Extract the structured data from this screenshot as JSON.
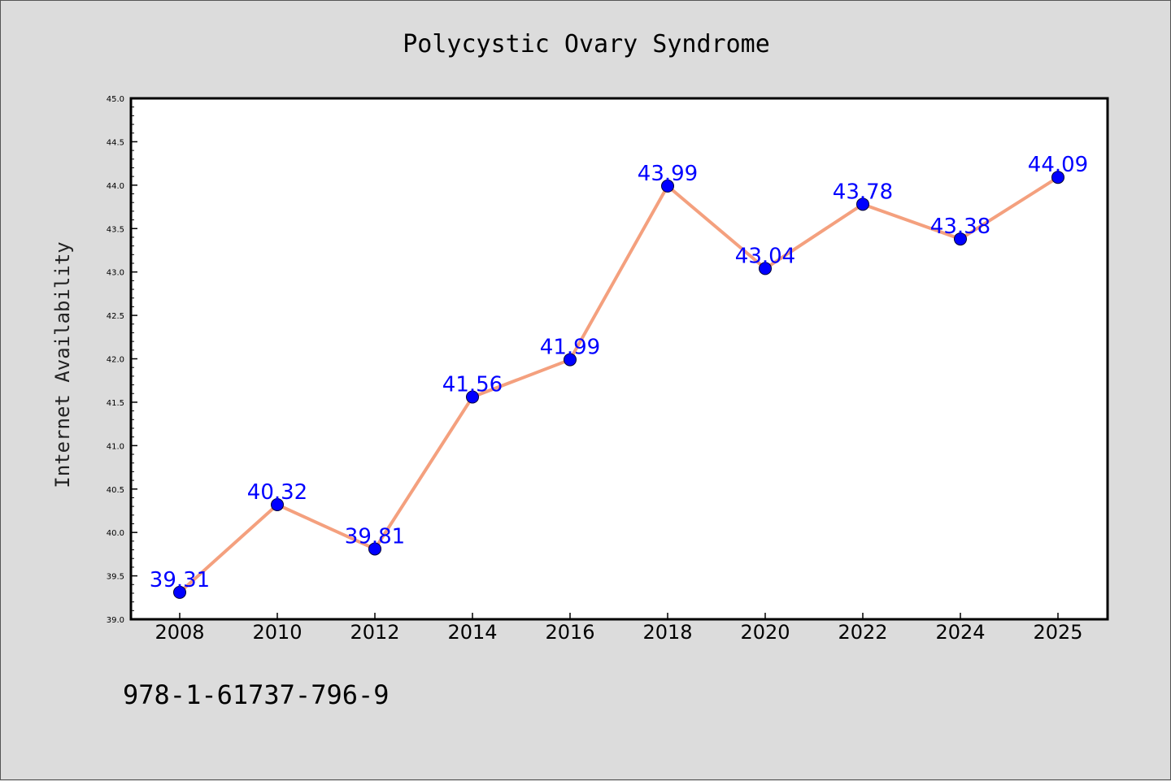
{
  "chart_data": {
    "type": "line",
    "title": "Polycystic Ovary Syndrome",
    "xlabel": "",
    "ylabel": "Internet Availability",
    "x": [
      "2008",
      "2010",
      "2012",
      "2014",
      "2016",
      "2018",
      "2020",
      "2022",
      "2024",
      "2025"
    ],
    "series": [
      {
        "values": [
          39.31,
          40.32,
          39.81,
          41.56,
          41.99,
          43.99,
          43.04,
          43.78,
          43.38,
          44.09
        ],
        "labels": [
          "39.31",
          "40.32",
          "39.81",
          "41.56",
          "41.99",
          "43.99",
          "43.04",
          "43.78",
          "43.38",
          "44.09"
        ]
      }
    ],
    "ylim": [
      39.0,
      45.0
    ],
    "yticks": [
      "39.0",
      "39.5",
      "40.0",
      "40.5",
      "41.0",
      "41.5",
      "42.0",
      "42.5",
      "43.0",
      "43.5",
      "44.0",
      "44.5",
      "45.0"
    ],
    "grid": false,
    "colors": {
      "line": "#f4a07e",
      "marker": "#0000ff",
      "label": "#0000ff",
      "background": "#dcdcdc",
      "plot_background": "#ffffff"
    }
  },
  "footnote": "978-1-61737-796-9"
}
